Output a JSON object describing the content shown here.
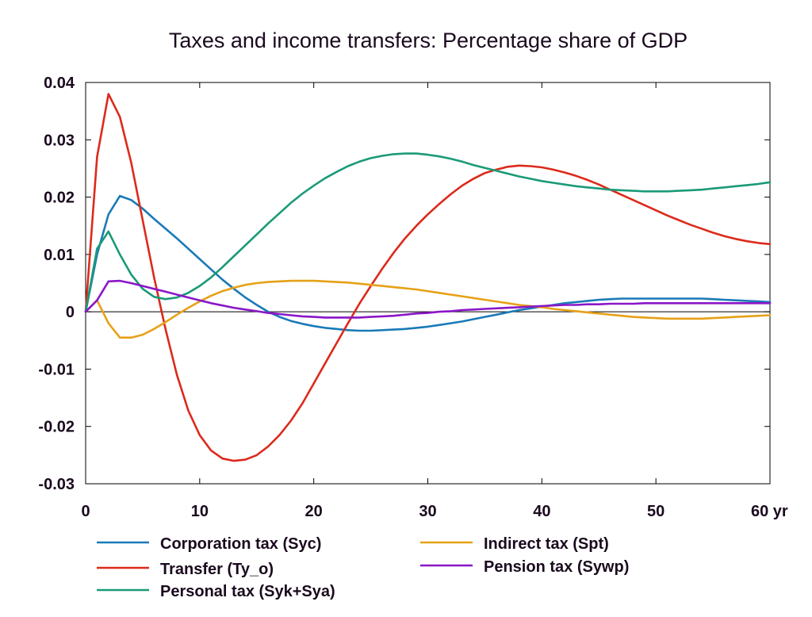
{
  "chart_data": {
    "type": "line",
    "title": "Taxes and income transfers: Percentage share of GDP",
    "xlabel": "",
    "ylabel": "",
    "xlim": [
      0,
      60
    ],
    "ylim": [
      -0.03,
      0.04
    ],
    "x_ticks": [
      0,
      10,
      20,
      30,
      40,
      50,
      60
    ],
    "x_tick_labels": [
      "0",
      "10",
      "20",
      "30",
      "40",
      "50",
      "60 yr"
    ],
    "y_ticks": [
      -0.03,
      -0.02,
      -0.01,
      0,
      0.01,
      0.02,
      0.03,
      0.04
    ],
    "y_tick_labels": [
      "-0.03",
      "-0.02",
      "-0.01",
      "0",
      "0.01",
      "0.02",
      "0.03",
      "0.04"
    ],
    "grid": false,
    "legend_position": "bottom",
    "x": [
      0,
      1,
      2,
      3,
      4,
      5,
      6,
      7,
      8,
      9,
      10,
      11,
      12,
      13,
      14,
      15,
      16,
      17,
      18,
      19,
      20,
      21,
      22,
      23,
      24,
      25,
      26,
      27,
      28,
      29,
      30,
      31,
      32,
      33,
      34,
      35,
      36,
      37,
      38,
      39,
      40,
      41,
      42,
      43,
      44,
      45,
      46,
      47,
      48,
      49,
      50,
      51,
      52,
      53,
      54,
      55,
      56,
      57,
      58,
      59,
      60
    ],
    "series": [
      {
        "name": "Corporation tax (Syc)",
        "color": "#1a7ab8",
        "values": [
          0,
          0.01,
          0.017,
          0.0202,
          0.0195,
          0.018,
          0.0162,
          0.0145,
          0.0128,
          0.011,
          0.0092,
          0.0074,
          0.0056,
          0.004,
          0.0025,
          0.0012,
          0.0,
          -0.0009,
          -0.0016,
          -0.0021,
          -0.0025,
          -0.0028,
          -0.003,
          -0.0032,
          -0.0033,
          -0.0033,
          -0.0032,
          -0.0031,
          -0.003,
          -0.0028,
          -0.0026,
          -0.0023,
          -0.002,
          -0.0017,
          -0.0013,
          -0.0009,
          -0.0005,
          -0.0001,
          0.0003,
          0.0006,
          0.0009,
          0.0012,
          0.0015,
          0.0017,
          0.0019,
          0.0021,
          0.0022,
          0.0023,
          0.0023,
          0.0023,
          0.0023,
          0.0023,
          0.0023,
          0.0023,
          0.0023,
          0.0022,
          0.0021,
          0.002,
          0.0019,
          0.0018,
          0.0017
        ]
      },
      {
        "name": "Transfer (Ty_o)",
        "color": "#dc2a1b",
        "values": [
          0,
          0.027,
          0.038,
          0.034,
          0.026,
          0.016,
          0.006,
          -0.003,
          -0.011,
          -0.0172,
          -0.0215,
          -0.0242,
          -0.0256,
          -0.026,
          -0.0258,
          -0.025,
          -0.0235,
          -0.0215,
          -0.019,
          -0.016,
          -0.0125,
          -0.009,
          -0.0055,
          -0.002,
          0.0014,
          0.0045,
          0.0075,
          0.0103,
          0.0128,
          0.015,
          0.017,
          0.0188,
          0.0205,
          0.022,
          0.0232,
          0.0242,
          0.0248,
          0.0253,
          0.0255,
          0.0254,
          0.0252,
          0.0248,
          0.0243,
          0.0237,
          0.023,
          0.0222,
          0.0213,
          0.0204,
          0.0195,
          0.0186,
          0.0177,
          0.0168,
          0.016,
          0.0152,
          0.0145,
          0.0138,
          0.0132,
          0.0127,
          0.0123,
          0.012,
          0.0118
        ]
      },
      {
        "name": "Personal tax (Syk+Sya)",
        "color": "#1a9a78",
        "values": [
          0,
          0.011,
          0.014,
          0.01,
          0.0065,
          0.004,
          0.0026,
          0.0022,
          0.0025,
          0.0033,
          0.0045,
          0.006,
          0.0078,
          0.0097,
          0.0116,
          0.0135,
          0.0154,
          0.0172,
          0.019,
          0.0206,
          0.022,
          0.0233,
          0.0244,
          0.0254,
          0.0262,
          0.0268,
          0.0272,
          0.0275,
          0.0276,
          0.0276,
          0.0274,
          0.0271,
          0.0267,
          0.0262,
          0.0256,
          0.0251,
          0.0246,
          0.0241,
          0.0236,
          0.0232,
          0.0228,
          0.0225,
          0.0222,
          0.0219,
          0.0217,
          0.0215,
          0.0213,
          0.0212,
          0.0211,
          0.021,
          0.021,
          0.021,
          0.0211,
          0.0212,
          0.0213,
          0.0215,
          0.0217,
          0.0219,
          0.0221,
          0.0223,
          0.0226
        ]
      },
      {
        "name": "Indirect tax (Spt)",
        "color": "#e6a117",
        "values": [
          0,
          0.002,
          -0.002,
          -0.0045,
          -0.0045,
          -0.004,
          -0.003,
          -0.0018,
          -0.0005,
          0.0007,
          0.0018,
          0.0028,
          0.0036,
          0.0042,
          0.0047,
          0.005,
          0.0052,
          0.0053,
          0.0054,
          0.0054,
          0.0054,
          0.0053,
          0.0052,
          0.0051,
          0.0049,
          0.0047,
          0.0045,
          0.0043,
          0.0041,
          0.0039,
          0.0036,
          0.0033,
          0.003,
          0.0027,
          0.0024,
          0.0021,
          0.0018,
          0.0015,
          0.0012,
          0.001,
          0.0008,
          0.0005,
          0.0003,
          0.0001,
          -0.0001,
          -0.0003,
          -0.0005,
          -0.0007,
          -0.0009,
          -0.001,
          -0.0011,
          -0.0012,
          -0.0012,
          -0.0012,
          -0.0012,
          -0.0011,
          -0.001,
          -0.0009,
          -0.0008,
          -0.0007,
          -0.0006
        ]
      },
      {
        "name": "Pension tax (Sywp)",
        "color": "#8b16c8",
        "values": [
          0,
          0.002,
          0.0053,
          0.0054,
          0.005,
          0.0045,
          0.004,
          0.0035,
          0.003,
          0.0025,
          0.002,
          0.0015,
          0.0011,
          0.0007,
          0.0004,
          0.0001,
          -0.0002,
          -0.0004,
          -0.0006,
          -0.0008,
          -0.0009,
          -0.001,
          -0.001,
          -0.001,
          -0.001,
          -0.0009,
          -0.0008,
          -0.0007,
          -0.0005,
          -0.0003,
          -0.0002,
          0.0,
          0.0001,
          0.0003,
          0.0004,
          0.0005,
          0.0006,
          0.0007,
          0.0008,
          0.0009,
          0.001,
          0.0011,
          0.0012,
          0.0012,
          0.0013,
          0.0013,
          0.0014,
          0.0014,
          0.0014,
          0.0015,
          0.0015,
          0.0015,
          0.0015,
          0.0015,
          0.0015,
          0.0015,
          0.0015,
          0.0015,
          0.0015,
          0.0015,
          0.0015
        ]
      }
    ]
  }
}
